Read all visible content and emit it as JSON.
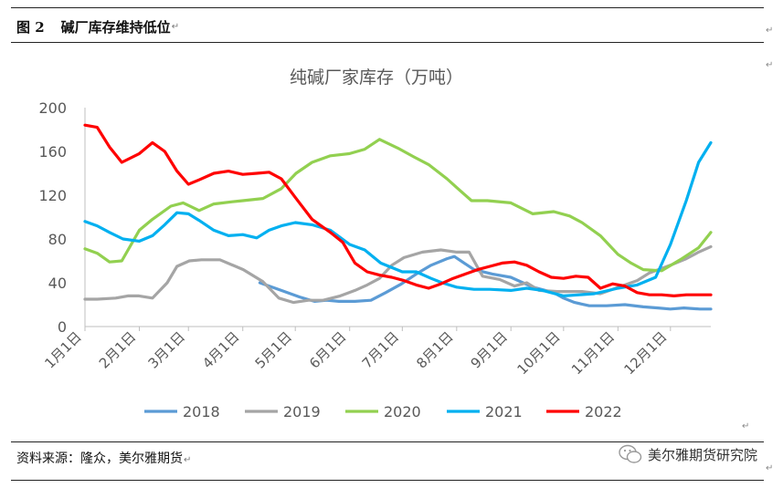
{
  "header": {
    "fig_no": "图 2",
    "fig_title": "碱厂库存维持低位"
  },
  "footer": {
    "source": "资料来源：隆众，美尔雅期货",
    "watermark": "美尔雅期货研究院"
  },
  "paragraph_mark": "↵",
  "chart_data": {
    "type": "line",
    "title": "纯碱厂家库存（万吨）",
    "xlabel": "",
    "ylabel": "",
    "ylim": [
      0,
      200
    ],
    "y_ticks": [
      0,
      40,
      80,
      120,
      160,
      200
    ],
    "x_range": [
      0,
      51
    ],
    "x_ticks": [
      {
        "label": "1月1日",
        "x": 0
      },
      {
        "label": "2月1日",
        "x": 4.43
      },
      {
        "label": "3月1日",
        "x": 8.43
      },
      {
        "label": "4月1日",
        "x": 12.86
      },
      {
        "label": "5月1日",
        "x": 17.14
      },
      {
        "label": "6月1日",
        "x": 21.57
      },
      {
        "label": "7月1日",
        "x": 25.86
      },
      {
        "label": "8月1日",
        "x": 30.29
      },
      {
        "label": "9月1日",
        "x": 34.71
      },
      {
        "label": "10月1日",
        "x": 39.0
      },
      {
        "label": "11月1日",
        "x": 43.43
      },
      {
        "label": "12月1日",
        "x": 47.71
      }
    ],
    "grid": false,
    "legend_position": "bottom",
    "series": [
      {
        "name": "2018",
        "color": "#5b9bd5",
        "x": [
          14.25,
          16,
          17.5,
          18.7,
          19.7,
          20.7,
          22,
          23.3,
          24.5,
          25.8,
          27,
          28.2,
          29.5,
          30.1,
          31.7,
          33.2,
          34.7,
          36.5,
          38.2,
          39.0,
          39.9,
          41.1,
          42.5,
          44.0,
          45.5,
          46.7,
          47.7,
          48.8,
          50.1,
          51.0
        ],
        "y": [
          40,
          33,
          27,
          23,
          24,
          23,
          23,
          24,
          31,
          39,
          48,
          56,
          62,
          64,
          52,
          48,
          45,
          36,
          31,
          26,
          22,
          19,
          19,
          20,
          18,
          17,
          16,
          17,
          16,
          16
        ]
      },
      {
        "name": "2019",
        "color": "#a5a5a5",
        "x": [
          0,
          1,
          2.5,
          3.5,
          4.4,
          5.5,
          6.7,
          7.5,
          8.5,
          9.5,
          11,
          12.9,
          14.5,
          15.8,
          17,
          18.2,
          19.4,
          20.8,
          22,
          23,
          24,
          25,
          26,
          27.5,
          29,
          30.3,
          31.3,
          32.4,
          33.8,
          35,
          36,
          37,
          38.5,
          40.5,
          42,
          43.5,
          45,
          46,
          47.7,
          49,
          50,
          51
        ],
        "y": [
          25,
          25,
          26,
          28,
          28,
          26,
          40,
          55,
          60,
          61,
          61,
          52,
          41,
          26,
          22,
          24,
          24,
          28,
          33,
          38,
          44,
          56,
          63,
          68,
          70,
          68,
          68,
          46,
          43,
          37,
          40,
          33,
          32,
          32,
          30,
          36,
          42,
          49,
          56,
          62,
          68,
          73
        ]
      },
      {
        "name": "2020",
        "color": "#92d050",
        "x": [
          0,
          1,
          2,
          3,
          4.43,
          5.5,
          7,
          8,
          9.3,
          10.5,
          12,
          12.86,
          14.5,
          16,
          17.2,
          18.5,
          20,
          21.57,
          22.8,
          24,
          25.5,
          26.8,
          28,
          29.5,
          30.29,
          31.5,
          32.8,
          34.7,
          36.5,
          38.2,
          39.5,
          40.5,
          42,
          43.43,
          44.5,
          45.5,
          47,
          48.5,
          50,
          51
        ],
        "y": [
          71,
          67,
          59,
          60,
          88,
          98,
          110,
          113,
          106,
          112,
          114,
          115,
          117,
          126,
          140,
          150,
          156,
          158,
          162,
          171,
          163,
          155,
          148,
          135,
          127,
          115,
          115,
          113,
          103,
          105,
          101,
          95,
          83,
          66,
          58,
          52,
          51,
          61,
          72,
          86
        ]
      },
      {
        "name": "2021",
        "color": "#00b0f0",
        "x": [
          0,
          1,
          2,
          3.1,
          4.43,
          5.5,
          6.5,
          7.5,
          8.43,
          9.3,
          10.5,
          11.7,
          12.86,
          14.0,
          15.0,
          16.0,
          17.14,
          18.5,
          20,
          21.57,
          22.8,
          24.1,
          25.86,
          27.0,
          28.2,
          29.1,
          30.29,
          31.7,
          33.0,
          34.71,
          36,
          37.3,
          39.0,
          40.3,
          41.5,
          43.43,
          45.0,
          46.5,
          47.71,
          49,
          50,
          51
        ],
        "y": [
          96,
          92,
          86,
          80,
          78,
          83,
          93,
          104,
          103,
          97,
          88,
          83,
          84,
          81,
          88,
          92,
          95,
          93,
          88,
          75,
          70,
          58,
          50,
          50,
          44,
          40,
          36,
          34,
          34,
          33,
          35,
          33,
          28,
          29,
          30,
          35,
          38,
          45,
          75,
          115,
          150,
          168
        ]
      },
      {
        "name": "2022",
        "color": "#ff0000",
        "x": [
          0,
          1,
          2,
          3,
          4.43,
          5.5,
          6.5,
          7.5,
          8.43,
          9.3,
          10.5,
          11.7,
          12.86,
          14.0,
          15.0,
          16.0,
          17.14,
          18.5,
          20.0,
          21.0,
          22.0,
          23.0,
          24.0,
          25.0,
          26.0,
          27.0,
          28.0,
          29.0,
          30.0,
          31.0,
          32.0,
          33.0,
          34.0,
          35.0,
          36.0,
          37.0,
          38.0,
          39.0,
          40.0,
          41.0,
          42.0,
          43.0,
          44.0,
          45.0,
          46.0,
          47.0,
          48.0,
          49.0,
          50.0,
          51.0
        ],
        "y": [
          184,
          182,
          164,
          150,
          158,
          168,
          160,
          142,
          130,
          134,
          140,
          142,
          139,
          140,
          141,
          135,
          118,
          98,
          86,
          77,
          58,
          50,
          47,
          45,
          42,
          38,
          35,
          39,
          44,
          48,
          52,
          55,
          58,
          59,
          56,
          50,
          45,
          44,
          46,
          45,
          35,
          39,
          37,
          31,
          29,
          29,
          28,
          29,
          29,
          29
        ]
      }
    ]
  }
}
